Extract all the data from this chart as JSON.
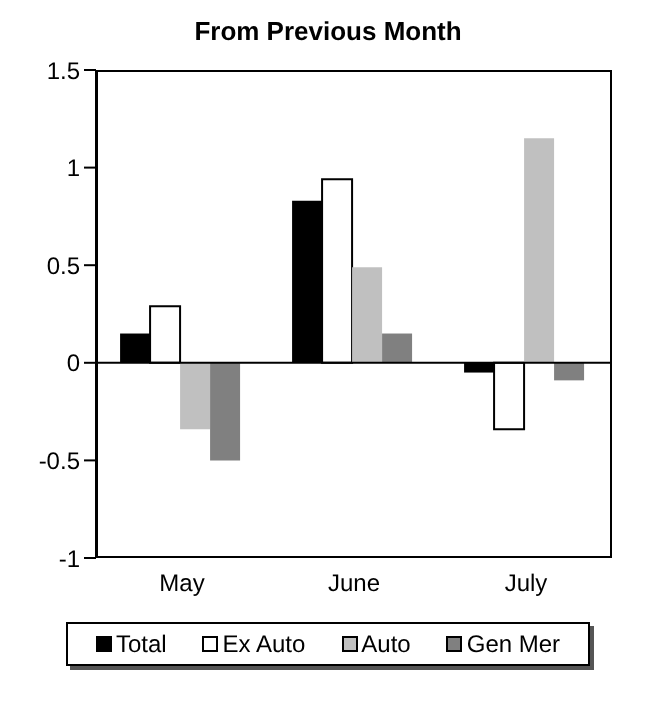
{
  "chart_data": {
    "type": "bar",
    "title": "From Previous Month",
    "categories": [
      "May",
      "June",
      "July"
    ],
    "series": [
      {
        "name": "Total",
        "color": "#000000",
        "values": [
          0.15,
          0.83,
          -0.05
        ]
      },
      {
        "name": "Ex Auto",
        "color": "#ffffff",
        "values": [
          0.29,
          0.94,
          -0.34
        ]
      },
      {
        "name": "Auto",
        "color": "#c0c0c0",
        "values": [
          -0.34,
          0.49,
          1.15
        ]
      },
      {
        "name": "Gen Mer",
        "color": "#808080",
        "values": [
          -0.5,
          0.15,
          -0.09
        ]
      }
    ],
    "ylim": [
      -1,
      1.5
    ],
    "yticks": [
      -1,
      -0.5,
      0,
      0.5,
      1,
      1.5
    ],
    "legend": "bottom"
  }
}
